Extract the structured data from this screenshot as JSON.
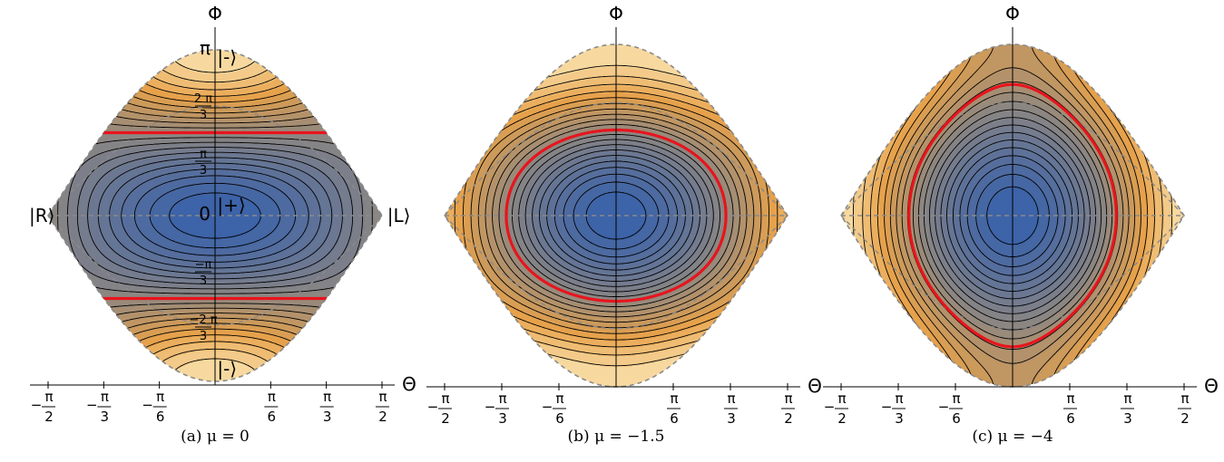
{
  "chart_data": [
    {
      "type": "contour",
      "caption": "(a) μ = 0",
      "mu": 0,
      "xlabel": "Θ",
      "ylabel": "Φ",
      "xlim": [
        -1.5708,
        1.5708
      ],
      "ylim": [
        -3.1416,
        3.1416
      ],
      "x_ticks": [
        {
          "value": -1.5708,
          "sign": "−",
          "num": "π",
          "den": "2"
        },
        {
          "value": -1.0472,
          "sign": "−",
          "num": "π",
          "den": "3"
        },
        {
          "value": -0.5236,
          "sign": "−",
          "num": "π",
          "den": "6"
        },
        {
          "value": 0.5236,
          "sign": "",
          "num": "π",
          "den": "6"
        },
        {
          "value": 1.0472,
          "sign": "",
          "num": "π",
          "den": "3"
        },
        {
          "value": 1.5708,
          "sign": "",
          "num": "π",
          "den": "2"
        }
      ],
      "y_ticks": [
        {
          "value": 3.1416,
          "label": "π"
        },
        {
          "value": 2.0944,
          "num": "2 π",
          "den": "3"
        },
        {
          "value": 1.0472,
          "num": "π",
          "den": "3"
        },
        {
          "value": 0,
          "label": "0"
        },
        {
          "value": -1.0472,
          "num": "−π",
          "den": "3"
        },
        {
          "value": -2.0944,
          "num": "−2 π",
          "den": "3"
        }
      ],
      "state_labels": [
        {
          "text": "|-⟩",
          "x": 0.02,
          "y": 3.0
        },
        {
          "text": "|+⟩",
          "x": 0.02,
          "y": 0.2
        },
        {
          "text": "|-⟩",
          "x": 0.02,
          "y": -2.9
        },
        {
          "text": "|R⟩",
          "x": -1.75,
          "y": 0
        },
        {
          "text": "|L⟩",
          "x": 1.62,
          "y": 0
        }
      ],
      "separatrix": "red"
    },
    {
      "type": "contour",
      "caption": "(b) μ = −1.5",
      "mu": -1.5,
      "xlabel": "Θ",
      "ylabel": "Φ",
      "xlim": [
        -1.5708,
        1.5708
      ],
      "ylim": [
        -3.1416,
        3.1416
      ],
      "x_ticks": [
        {
          "value": -1.5708,
          "sign": "−",
          "num": "π",
          "den": "2"
        },
        {
          "value": -1.0472,
          "sign": "−",
          "num": "π",
          "den": "3"
        },
        {
          "value": -0.5236,
          "sign": "−",
          "num": "π",
          "den": "6"
        },
        {
          "value": 0.5236,
          "sign": "",
          "num": "π",
          "den": "6"
        },
        {
          "value": 1.0472,
          "sign": "",
          "num": "π",
          "den": "3"
        },
        {
          "value": 1.5708,
          "sign": "",
          "num": "π",
          "den": "2"
        }
      ],
      "separatrix": "red"
    },
    {
      "type": "contour",
      "caption": "(c) μ = −4",
      "mu": -4,
      "xlabel": "Θ",
      "ylabel": "Φ",
      "xlim": [
        -1.5708,
        1.5708
      ],
      "ylim": [
        -3.1416,
        3.1416
      ],
      "x_ticks": [
        {
          "value": -1.5708,
          "sign": "−",
          "num": "π",
          "den": "2"
        },
        {
          "value": -1.0472,
          "sign": "−",
          "num": "π",
          "den": "3"
        },
        {
          "value": -0.5236,
          "sign": "−",
          "num": "π",
          "den": "6"
        },
        {
          "value": 0.5236,
          "sign": "",
          "num": "π",
          "den": "6"
        },
        {
          "value": 1.0472,
          "sign": "",
          "num": "π",
          "den": "3"
        },
        {
          "value": 1.5708,
          "sign": "",
          "num": "π",
          "den": "2"
        }
      ],
      "separatrix": "red"
    }
  ],
  "colors": {
    "low": "#3d63a8",
    "mid": "#8b8683",
    "high": "#e8a24a",
    "top": "#fbe7b6",
    "separatrix": "#e8141c",
    "dashed": "#8a8a8a"
  }
}
